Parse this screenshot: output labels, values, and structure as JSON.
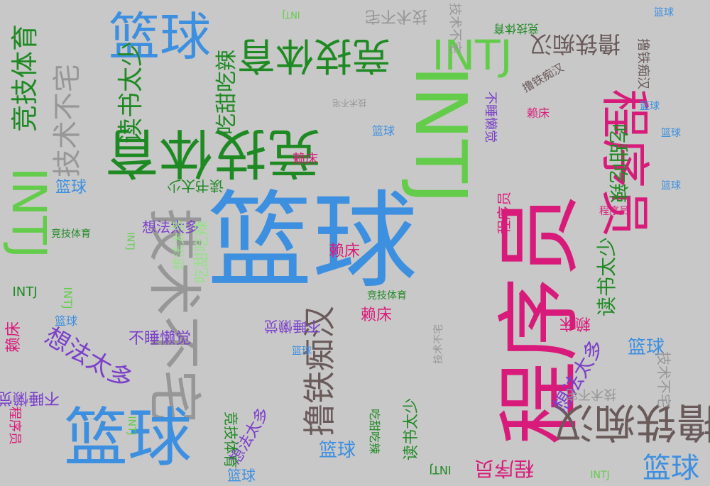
{
  "words": {
    "basketball": "篮球",
    "intj": "INTJ",
    "programmer": "程序员",
    "sports": "竞技体育",
    "tech_geek": "技术不宅",
    "lazy_bed": "赖床",
    "no_sleep": "不睡懒觉",
    "ideas": "想法太多",
    "reading": "读书太少",
    "iron": "撸铁痴汉",
    "sweet_spicy": "吃甜吃辣"
  },
  "colors": {
    "background": "#c8c8c8",
    "blue": "#3d8fe0",
    "green": "#63cc4a",
    "dark_green": "#1f8a23",
    "gray": "#979797",
    "pink": "#d81b7a",
    "brown": "#6a5a5a",
    "violet": "#7b3fc9",
    "lime": "#97e08a"
  }
}
